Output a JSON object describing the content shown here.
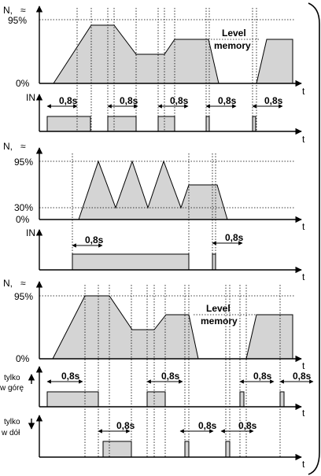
{
  "labels": {
    "y_axis_n": "N,",
    "pct_95": "95%",
    "pct_30": "30%",
    "pct_0": "0%",
    "in": "IN",
    "t": "t",
    "delay": "0,8s",
    "level": "Level",
    "memory": "memory",
    "up_1": "tylko",
    "up_2": "w górę",
    "down_1": "tylko",
    "down_2": "w dół"
  },
  "icons": {
    "tilde": "tilde-icon",
    "arrow_up": "arrow-up-icon",
    "arrow_down": "arrow-down-icon"
  },
  "colors": {
    "fill": "#d4d4d4",
    "line": "#000000",
    "background": "#ffffff"
  }
}
